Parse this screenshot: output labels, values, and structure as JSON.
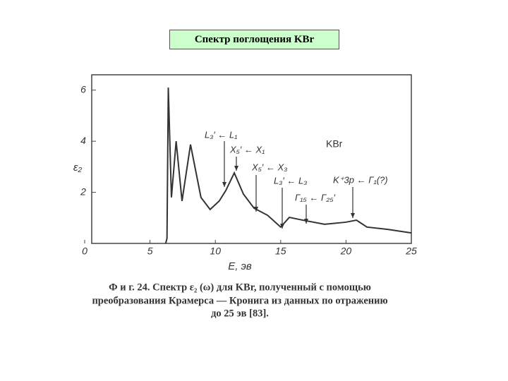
{
  "title": "Спектр поглощения KBr",
  "chart_data": {
    "type": "line",
    "xlabel": "E, эв",
    "ylabel": "ε₂",
    "x": [
      6.2,
      6.3,
      6.4,
      6.64,
      7.0,
      7.45,
      8.1,
      8.9,
      9.6,
      10.3,
      10.8,
      11.45,
      12.15,
      12.96,
      14.0,
      15.0,
      15.66,
      16.7,
      18.36,
      19.98,
      20.8,
      21.6,
      23.2,
      25.0
    ],
    "series": [
      {
        "name": "KBr",
        "color": "#333333",
        "values": [
          0,
          0.2,
          6.1,
          1.8,
          4.0,
          1.66,
          3.87,
          1.8,
          1.33,
          1.66,
          2.07,
          2.76,
          1.93,
          1.38,
          1.1,
          0.64,
          1.02,
          0.91,
          0.75,
          0.83,
          0.91,
          0.64,
          0.55,
          0.41
        ]
      }
    ],
    "xlim": [
      0,
      25
    ],
    "xticks": [
      0,
      5,
      10,
      15,
      20,
      25
    ],
    "ylim": [
      0,
      6.6
    ],
    "yticks": [
      2,
      4,
      6
    ],
    "annotations": [
      "L₃′ ← L₁",
      "X₅′ ← X₁",
      "X₅′ ← X₃",
      "L₃′ ← L₃",
      "Γ₁₅ ← Γ₂₅′",
      "K⁺3p ← Γ₁(?)"
    ],
    "caption": [
      "Ф и г. 24. Спектр ε₂ (ω) для KBr, полученный с помощью",
      "преобразования Крамерса — Кронига из данных по отражению",
      "до 25 эв [83]."
    ]
  }
}
